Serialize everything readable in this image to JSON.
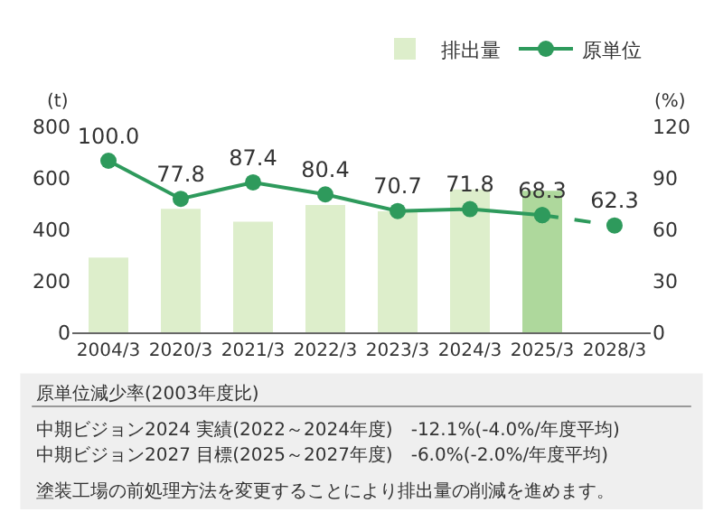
{
  "chart_data": {
    "type": "bar",
    "categories": [
      "2004/3",
      "2020/3",
      "2021/3",
      "2022/3",
      "2023/3",
      "2024/3",
      "2025/3",
      "2028/3"
    ],
    "ylabel": "(t)",
    "y2label": "(%)",
    "ylim": [
      0,
      800
    ],
    "yticks": [
      0,
      200,
      400,
      600,
      800
    ],
    "y2lim": [
      0,
      120
    ],
    "y2ticks": [
      0,
      30,
      60,
      90,
      120
    ],
    "series": [
      {
        "name": "排出量",
        "colors": [
          "#ddeecb",
          "#ddeecb",
          "#ddeecb",
          "#ddeecb",
          "#ddeecb",
          "#ddeecb",
          "#aed89c",
          null
        ],
        "values": [
          290,
          480,
          430,
          495,
          470,
          555,
          550,
          null
        ]
      },
      {
        "name": "原単位",
        "type": "line",
        "axis": "y2",
        "color": "#2e9a5c",
        "line_style": "solid",
        "values": [
          100.0,
          77.8,
          87.4,
          80.4,
          70.7,
          71.8,
          68.3,
          null
        ],
        "value_labels": [
          "100.0",
          "77.8",
          "87.4",
          "80.4",
          "70.7",
          "71.8",
          "68.3",
          null
        ]
      },
      {
        "type": "line",
        "axis": "y2",
        "color": "#2e9a5c",
        "line_style": "dashed",
        "values": [
          null,
          null,
          null,
          null,
          null,
          null,
          68.3,
          62.3
        ],
        "value_labels": [
          null,
          null,
          null,
          null,
          null,
          null,
          null,
          "62.3"
        ]
      }
    ],
    "marker": "circle",
    "legend": "top right",
    "annotations": [
      "原単位減少率(2003年度比)",
      "中期ビジョン2024 実績(2022～2024年度)　-12.1%(-4.0%/年度平均)",
      "中期ビジョン2027 目標(2025～2027年度)　-6.0%(-2.0%/年度平均)",
      "塗装工場の前処理方法を変更することにより排出量の削減を進めます。"
    ]
  }
}
